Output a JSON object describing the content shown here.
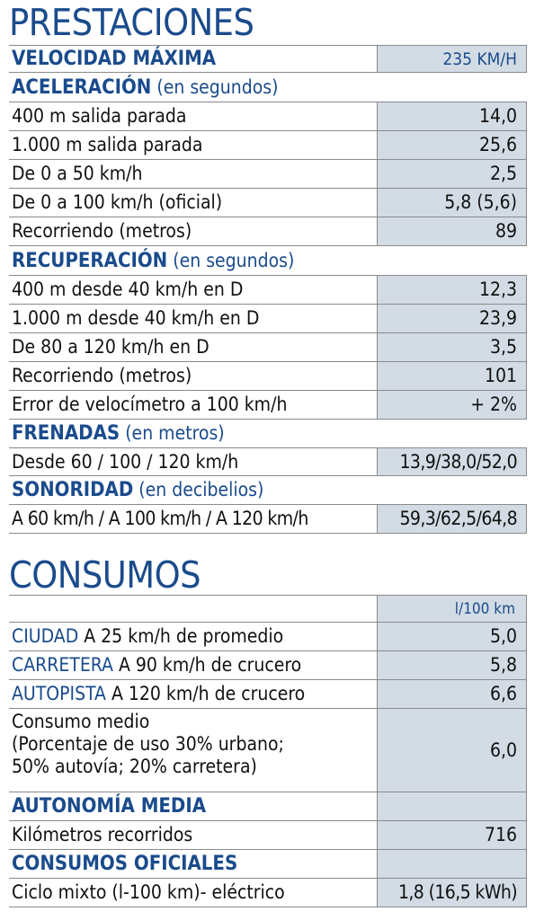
{
  "prestaciones": {
    "title": "PRESTACIONES",
    "velocidad": {
      "label": "VELOCIDAD MÁXIMA",
      "value": "235 KM/H"
    },
    "aceleracion": {
      "heading": "ACELERACIÓN",
      "unit": "(en segundos)",
      "rows": [
        {
          "label": "400 m salida parada",
          "value": "14,0"
        },
        {
          "label": "1.000 m salida parada",
          "value": "25,6"
        },
        {
          "label": "De 0 a 50 km/h",
          "value": "2,5"
        },
        {
          "label": "De 0 a 100 km/h (oficial)",
          "value": "5,8 (5,6)"
        },
        {
          "label": "Recorriendo (metros)",
          "value": "89"
        }
      ]
    },
    "recuperacion": {
      "heading": "RECUPERACIÓN",
      "unit": "(en segundos)",
      "rows": [
        {
          "label": "400 m desde 40 km/h en D",
          "value": "12,3"
        },
        {
          "label": "1.000 m desde 40 km/h en D",
          "value": "23,9"
        },
        {
          "label": "De 80 a 120 km/h en D",
          "value": "3,5"
        },
        {
          "label": "Recorriendo (metros)",
          "value": "101"
        },
        {
          "label": "Error de velocímetro a 100 km/h",
          "value": "+ 2%"
        }
      ]
    },
    "frenadas": {
      "heading": "FRENADAS",
      "unit": "(en metros)",
      "row": {
        "label": "Desde 60 / 100 / 120 km/h",
        "value": "13,9/38,0/52,0"
      }
    },
    "sonoridad": {
      "heading": "SONORIDAD",
      "unit": "(en decibelios)",
      "row": {
        "label": "A 60 km/h / A 100 km/h / A 120 km/h",
        "value": "59,3/62,5/64,8"
      }
    }
  },
  "consumos": {
    "title": "CONSUMOS",
    "unit_header": "l/100 km",
    "rows": [
      {
        "keyword": "CIUDAD",
        "label": "A 25 km/h de promedio",
        "value": "5,0"
      },
      {
        "keyword": "CARRETERA",
        "label": "A 90 km/h de crucero",
        "value": "5,8"
      },
      {
        "keyword": "AUTOPISTA",
        "label": "A 120 km/h de crucero",
        "value": "6,6"
      }
    ],
    "medio": {
      "line1": "Consumo medio",
      "line2": "(Porcentaje de uso 30% urbano;",
      "line3": "50% autovía; 20% carretera)",
      "value": "6,0"
    },
    "autonomia": {
      "heading": "AUTONOMÍA MEDIA",
      "row": {
        "label": "Kilómetros recorridos",
        "value": "716"
      }
    },
    "oficiales": {
      "heading": "CONSUMOS OFICIALES",
      "row": {
        "label": "Ciclo mixto (l-100 km)- eléctrico",
        "value": "1,8 (16,5 kWh)"
      }
    }
  },
  "colors": {
    "accent": "#1a4b8c",
    "cell_bg": "#d3dce5",
    "rule": "#8a8a8a"
  }
}
